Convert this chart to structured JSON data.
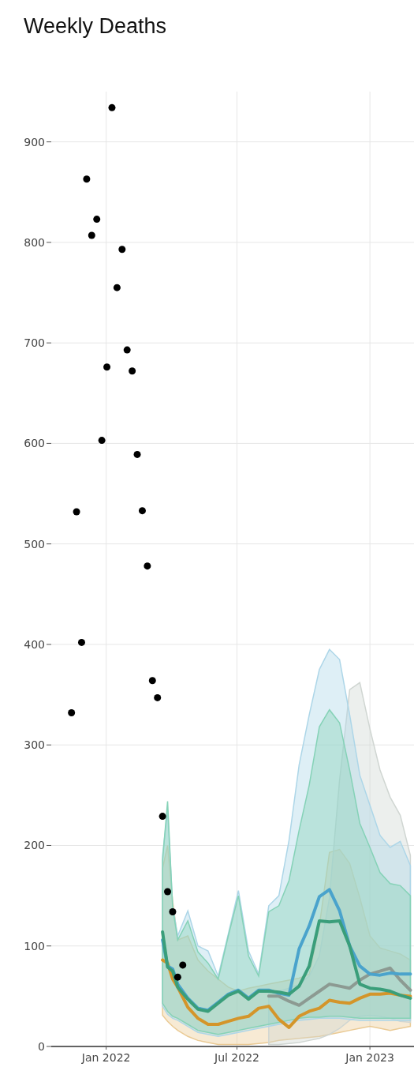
{
  "chart_data": {
    "type": "line",
    "title": "Weekly Deaths",
    "xlim": [
      "2021-10-17",
      "2023-03-03"
    ],
    "ylim": [
      0,
      950
    ],
    "xticks": [
      {
        "value": "2022-01-01",
        "label": "Jan 2022"
      },
      {
        "value": "2022-07-01",
        "label": "Jul 2022"
      },
      {
        "value": "2023-01-01",
        "label": "Jan 2023"
      }
    ],
    "yticks": [
      0,
      100,
      200,
      300,
      400,
      500,
      600,
      700,
      800,
      900
    ],
    "grid": true,
    "series": [
      {
        "color": "#d4952a",
        "x": [
          "2022-03-20",
          "2022-03-27",
          "2022-04-03",
          "2022-04-10",
          "2022-04-24",
          "2022-05-08",
          "2022-05-22",
          "2022-06-05",
          "2022-06-19",
          "2022-07-03",
          "2022-07-17",
          "2022-07-31",
          "2022-08-14",
          "2022-08-28",
          "2022-09-11",
          "2022-09-25",
          "2022-10-09",
          "2022-10-23",
          "2022-11-06",
          "2022-11-20",
          "2022-12-04",
          "2022-12-18",
          "2023-01-01",
          "2023-01-15",
          "2023-01-29",
          "2023-02-12",
          "2023-02-26"
        ],
        "values": [
          86,
          83,
          67,
          59,
          39,
          28,
          22,
          22,
          25,
          28,
          30,
          38,
          40,
          27,
          19,
          30,
          35,
          38,
          46,
          44,
          43,
          48,
          52,
          52,
          53,
          51,
          50
        ],
        "lower": [
          31,
          25,
          20,
          16,
          10,
          6,
          4,
          2,
          2,
          2,
          2,
          3,
          4,
          6,
          7,
          8,
          9,
          10,
          12,
          14,
          16,
          18,
          20,
          18,
          16,
          18,
          20
        ],
        "upper": [
          177,
          200,
          145,
          106,
          110,
          86,
          75,
          67,
          59,
          55,
          58,
          60,
          62,
          64,
          66,
          68,
          72,
          120,
          193,
          196,
          182,
          148,
          110,
          98,
          95,
          92,
          86
        ]
      },
      {
        "color": "#8c9a92",
        "x": [
          "2022-08-14",
          "2022-08-28",
          "2022-09-11",
          "2022-09-25",
          "2022-10-09",
          "2022-10-23",
          "2022-11-06",
          "2022-11-20",
          "2022-12-04",
          "2022-12-18",
          "2023-01-01",
          "2023-01-15",
          "2023-01-29",
          "2023-02-12",
          "2023-02-26"
        ],
        "values": [
          50,
          50,
          45,
          41,
          48,
          55,
          62,
          60,
          58,
          66,
          72,
          75,
          78,
          66,
          56
        ],
        "lower": [
          2,
          2,
          3,
          4,
          6,
          8,
          12,
          18,
          26,
          30,
          31,
          30,
          28,
          25,
          24
        ],
        "upper": [
          55,
          55,
          58,
          62,
          70,
          90,
          148,
          265,
          355,
          362,
          316,
          275,
          248,
          230,
          190
        ]
      },
      {
        "color": "#4aa3cc",
        "x": [
          "2022-03-20",
          "2022-03-27",
          "2022-04-03",
          "2022-04-10",
          "2022-04-24",
          "2022-05-08",
          "2022-05-22",
          "2022-06-05",
          "2022-06-19",
          "2022-07-03",
          "2022-07-17",
          "2022-07-31",
          "2022-08-14",
          "2022-08-28",
          "2022-09-11",
          "2022-09-25",
          "2022-10-09",
          "2022-10-23",
          "2022-11-06",
          "2022-11-20",
          "2022-12-04",
          "2022-12-18",
          "2023-01-01",
          "2023-01-15",
          "2023-01-29",
          "2023-02-12",
          "2023-02-26"
        ],
        "values": [
          106,
          80,
          77,
          62,
          48,
          38,
          36,
          44,
          52,
          56,
          48,
          56,
          56,
          53,
          51,
          97,
          120,
          149,
          156,
          135,
          100,
          80,
          72,
          71,
          73,
          72,
          72
        ],
        "lower": [
          40,
          32,
          28,
          26,
          20,
          14,
          12,
          10,
          12,
          14,
          16,
          18,
          20,
          22,
          24,
          26,
          27,
          28,
          28,
          28,
          27,
          26,
          26,
          26,
          26,
          26,
          26
        ],
        "upper": [
          190,
          235,
          140,
          110,
          135,
          100,
          95,
          70,
          112,
          155,
          95,
          72,
          140,
          150,
          205,
          280,
          330,
          375,
          395,
          385,
          330,
          270,
          240,
          210,
          198,
          204,
          180
        ]
      },
      {
        "color": "#3a9e7a",
        "x": [
          "2022-03-20",
          "2022-03-27",
          "2022-04-03",
          "2022-04-10",
          "2022-04-24",
          "2022-05-08",
          "2022-05-22",
          "2022-06-05",
          "2022-06-19",
          "2022-07-03",
          "2022-07-17",
          "2022-07-31",
          "2022-08-14",
          "2022-08-28",
          "2022-09-11",
          "2022-09-25",
          "2022-10-09",
          "2022-10-23",
          "2022-11-06",
          "2022-11-20",
          "2022-12-04",
          "2022-12-18",
          "2023-01-01",
          "2023-01-15",
          "2023-01-29",
          "2023-02-12",
          "2023-02-26"
        ],
        "values": [
          114,
          79,
          75,
          59,
          47,
          37,
          35,
          43,
          51,
          55,
          47,
          55,
          55,
          54,
          52,
          60,
          80,
          125,
          124,
          125,
          100,
          62,
          58,
          57,
          55,
          51,
          48
        ],
        "lower": [
          43,
          35,
          30,
          28,
          22,
          16,
          14,
          12,
          14,
          16,
          18,
          20,
          22,
          24,
          26,
          28,
          29,
          29,
          30,
          30,
          29,
          28,
          28,
          28,
          28,
          28,
          28
        ],
        "upper": [
          185,
          244,
          138,
          106,
          125,
          94,
          83,
          67,
          110,
          150,
          90,
          70,
          134,
          140,
          165,
          215,
          260,
          318,
          335,
          322,
          275,
          222,
          198,
          173,
          162,
          160,
          150
        ]
      },
      {
        "type": "scatter",
        "color": "#000000",
        "marker": "circle",
        "x": [
          "2021-11-14",
          "2021-11-21",
          "2021-11-28",
          "2021-12-05",
          "2021-12-12",
          "2021-12-19",
          "2021-12-26",
          "2022-01-02",
          "2022-01-09",
          "2022-01-16",
          "2022-01-23",
          "2022-01-30",
          "2022-02-06",
          "2022-02-13",
          "2022-02-20",
          "2022-02-27",
          "2022-03-06",
          "2022-03-13",
          "2022-03-20",
          "2022-03-27",
          "2022-04-03",
          "2022-04-10",
          "2022-04-17"
        ],
        "values": [
          332,
          532,
          402,
          863,
          807,
          823,
          603,
          676,
          934,
          755,
          793,
          693,
          672,
          589,
          533,
          478,
          364,
          347,
          229,
          154,
          134,
          69,
          81
        ]
      }
    ]
  }
}
